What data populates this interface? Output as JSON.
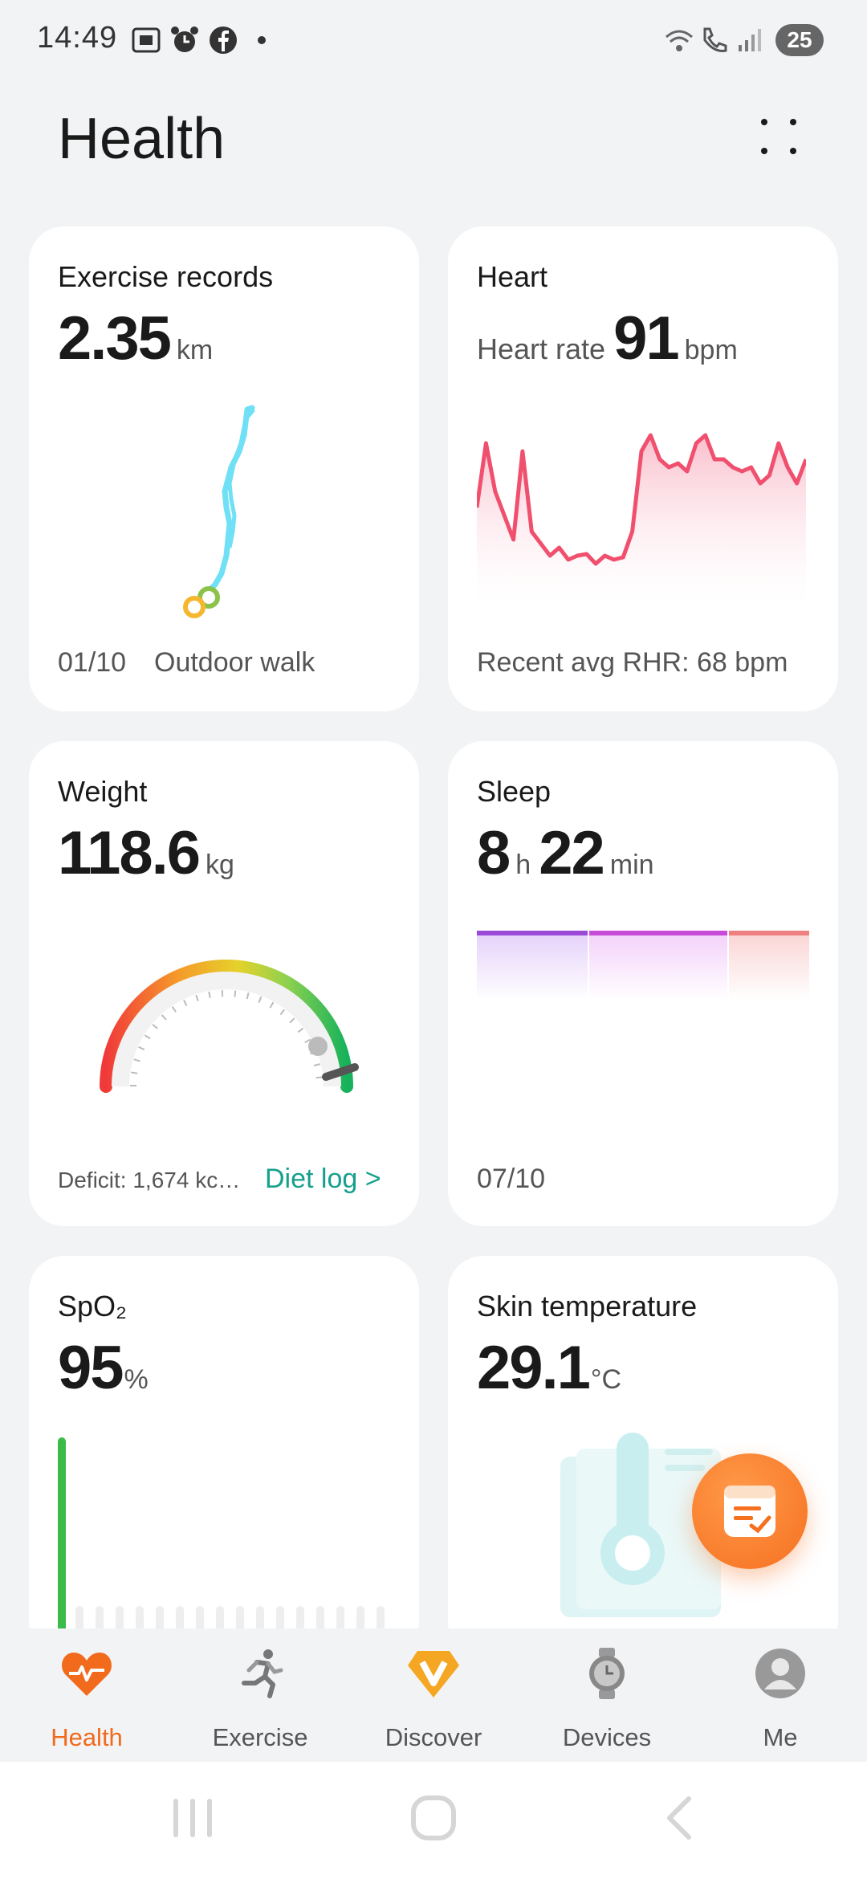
{
  "status_bar": {
    "time": "14:49",
    "battery": "25"
  },
  "header": {
    "title": "Health"
  },
  "cards": {
    "exercise": {
      "title": "Exercise records",
      "value": "2.35",
      "unit": "km",
      "date": "01/10",
      "activity": "Outdoor walk"
    },
    "heart": {
      "title": "Heart",
      "prefix": "Heart rate",
      "value": "91",
      "unit": "bpm",
      "footer": "Recent avg RHR: 68 bpm"
    },
    "weight": {
      "title": "Weight",
      "value": "118.6",
      "unit": "kg",
      "deficit": "Deficit: 1,674 kc…",
      "diet_link": "Diet log >"
    },
    "sleep": {
      "title": "Sleep",
      "hours": "8",
      "h_unit": "h",
      "minutes": "22",
      "m_unit": "min",
      "date": "07/10"
    },
    "spo2": {
      "title": "SpO₂",
      "value": "95",
      "unit": "%"
    },
    "skin": {
      "title": "Skin temperature",
      "value": "29.1",
      "unit": "°C"
    }
  },
  "bottom_nav": [
    {
      "label": "Health",
      "icon": "heart-pulse-icon",
      "active": true
    },
    {
      "label": "Exercise",
      "icon": "running-icon",
      "active": false
    },
    {
      "label": "Discover",
      "icon": "discover-v-icon",
      "active": false
    },
    {
      "label": "Devices",
      "icon": "watch-icon",
      "active": false
    },
    {
      "label": "Me",
      "icon": "avatar-icon",
      "active": false
    }
  ],
  "colors": {
    "accent": "#f26a1b",
    "teal": "#15a08c",
    "heart_line": "#f0506e",
    "route": "#6fe0f5"
  }
}
